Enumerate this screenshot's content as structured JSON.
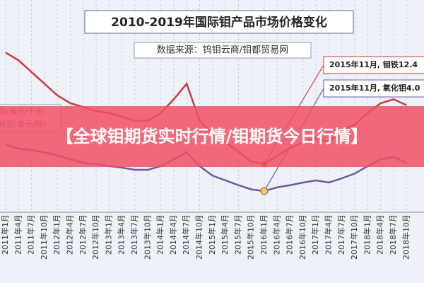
{
  "chart_data": {
    "type": "line",
    "title": "2010-2019年国际钼产品市场价格变化",
    "subtitle": "数据来源：钨钼云商/钼都贸易网",
    "categories": [
      "2011年1月",
      "2011年4月",
      "2011年7月",
      "2011年10月",
      "2012年1月",
      "2012年4月",
      "2012年7月",
      "2012年10月",
      "2013年1月",
      "2013年4月",
      "2013年7月",
      "2013年10月",
      "2014年1月",
      "2014年4月",
      "2014年7月",
      "2014年10月",
      "2015年1月",
      "2015年4月",
      "2015年7月",
      "2015年10月",
      "2016年1月",
      "2016年4月",
      "2016年7月",
      "2016年10月",
      "2017年1月",
      "2017年4月",
      "2017年7月",
      "2017年10月",
      "2018年1月",
      "2018年4月",
      "2018年7月",
      "2018年10月"
    ],
    "series": [
      {
        "name": "钼铁(美元/千克)",
        "color": "#cc3b3b",
        "values": [
          41,
          39,
          36,
          33,
          30,
          28,
          27,
          26,
          25.5,
          24.5,
          23.5,
          23.5,
          25.5,
          29,
          33,
          23.5,
          20,
          18,
          15.5,
          13,
          12.4,
          14.5,
          16.5,
          18,
          19,
          18,
          21,
          22.5,
          25.5,
          28,
          29,
          27.5
        ]
      },
      {
        "name": "氧化钼(美元/磅)",
        "color": "#6b5b9e",
        "axis": "y2",
        "values": [
          12.7,
          12,
          11.7,
          11.3,
          10.7,
          10,
          9.3,
          9.1,
          8.7,
          8.4,
          8,
          8,
          8.7,
          10,
          11.3,
          8.7,
          6.9,
          6,
          5.1,
          4.3,
          4.0,
          4.7,
          5.1,
          5.6,
          6,
          5.6,
          6.4,
          7.3,
          8.7,
          10,
          10.4,
          9.3
        ]
      }
    ],
    "ylim": [
      0,
      54.5
    ],
    "y2lim": [
      0,
      40
    ],
    "grid": true,
    "annotations": [
      "2015年11月, 钼铁12.4",
      "2015年11月, 氧化钼4.0"
    ],
    "overlay": "【全球钼期货实时行情/钼期货今日行情】"
  }
}
